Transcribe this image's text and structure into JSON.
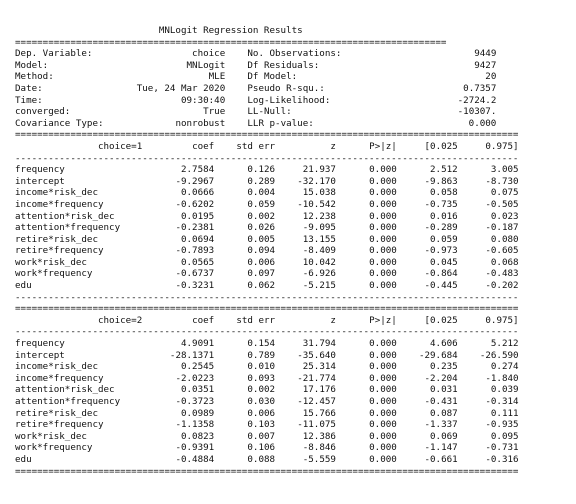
{
  "title": "MNLogit Regression Results",
  "summary": [
    {
      "label": "Dep. Variable:",
      "value": "choice",
      "label2": "No. Observations:",
      "value2": "9449"
    },
    {
      "label": "Model:",
      "value": "MNLogit",
      "label2": "Df Residuals:",
      "value2": "9427"
    },
    {
      "label": "Method:",
      "value": "MLE",
      "label2": "Df Model:",
      "value2": "20"
    },
    {
      "label": "Date:",
      "value": "Tue, 24 Mar 2020",
      "label2": "Pseudo R-squ.:",
      "value2": "0.7357"
    },
    {
      "label": "Time:",
      "value": "09:30:40",
      "label2": "Log-Likelihood:",
      "value2": "-2724.2"
    },
    {
      "label": "converged:",
      "value": "True",
      "label2": "LL-Null:",
      "value2": "-10307."
    },
    {
      "label": "Covariance Type:",
      "value": "nonrobust",
      "label2": "LLR p-value:",
      "value2": "0.000"
    }
  ],
  "column_headers": [
    "coef",
    "std err",
    "z",
    "P>|z|",
    "[0.025",
    "0.975]"
  ],
  "blocks": [
    {
      "header": "choice=1",
      "rows": [
        {
          "name": "frequency",
          "cells": [
            "2.7584",
            "0.126",
            "21.937",
            "0.000",
            "2.512",
            "3.005"
          ]
        },
        {
          "name": "intercept",
          "cells": [
            "-9.2967",
            "0.289",
            "-32.170",
            "0.000",
            "-9.863",
            "-8.730"
          ]
        },
        {
          "name": "income*risk_dec",
          "cells": [
            "0.0666",
            "0.004",
            "15.038",
            "0.000",
            "0.058",
            "0.075"
          ]
        },
        {
          "name": "income*frequency",
          "cells": [
            "-0.6202",
            "0.059",
            "-10.542",
            "0.000",
            "-0.735",
            "-0.505"
          ]
        },
        {
          "name": "attention*risk_dec",
          "cells": [
            "0.0195",
            "0.002",
            "12.238",
            "0.000",
            "0.016",
            "0.023"
          ]
        },
        {
          "name": "attention*frequency",
          "cells": [
            "-0.2381",
            "0.026",
            "-9.095",
            "0.000",
            "-0.289",
            "-0.187"
          ]
        },
        {
          "name": "retire*risk_dec",
          "cells": [
            "0.0694",
            "0.005",
            "13.155",
            "0.000",
            "0.059",
            "0.080"
          ]
        },
        {
          "name": "retire*frequency",
          "cells": [
            "-0.7893",
            "0.094",
            "-8.409",
            "0.000",
            "-0.973",
            "-0.605"
          ]
        },
        {
          "name": "work*risk_dec",
          "cells": [
            "0.0565",
            "0.006",
            "10.042",
            "0.000",
            "0.045",
            "0.068"
          ]
        },
        {
          "name": "work*frequency",
          "cells": [
            "-0.6737",
            "0.097",
            "-6.926",
            "0.000",
            "-0.864",
            "-0.483"
          ]
        },
        {
          "name": "edu",
          "cells": [
            "-0.3231",
            "0.062",
            "-5.215",
            "0.000",
            "-0.445",
            "-0.202"
          ]
        }
      ]
    },
    {
      "header": "choice=2",
      "rows": [
        {
          "name": "frequency",
          "cells": [
            "4.9091",
            "0.154",
            "31.794",
            "0.000",
            "4.606",
            "5.212"
          ]
        },
        {
          "name": "intercept",
          "cells": [
            "-28.1371",
            "0.789",
            "-35.640",
            "0.000",
            "-29.684",
            "-26.590"
          ]
        },
        {
          "name": "income*risk_dec",
          "cells": [
            "0.2545",
            "0.010",
            "25.314",
            "0.000",
            "0.235",
            "0.274"
          ]
        },
        {
          "name": "income*frequency",
          "cells": [
            "-2.0223",
            "0.093",
            "-21.774",
            "0.000",
            "-2.204",
            "-1.840"
          ]
        },
        {
          "name": "attention*risk_dec",
          "cells": [
            "0.0351",
            "0.002",
            "17.176",
            "0.000",
            "0.031",
            "0.039"
          ]
        },
        {
          "name": "attention*frequency",
          "cells": [
            "-0.3723",
            "0.030",
            "-12.457",
            "0.000",
            "-0.431",
            "-0.314"
          ]
        },
        {
          "name": "retire*risk_dec",
          "cells": [
            "0.0989",
            "0.006",
            "15.766",
            "0.000",
            "0.087",
            "0.111"
          ]
        },
        {
          "name": "retire*frequency",
          "cells": [
            "-1.1358",
            "0.103",
            "-11.075",
            "0.000",
            "-1.337",
            "-0.935"
          ]
        },
        {
          "name": "work*risk_dec",
          "cells": [
            "0.0823",
            "0.007",
            "12.386",
            "0.000",
            "0.069",
            "0.095"
          ]
        },
        {
          "name": "work*frequency",
          "cells": [
            "-0.9391",
            "0.106",
            "-8.846",
            "0.000",
            "-1.147",
            "-0.731"
          ]
        },
        {
          "name": "edu",
          "cells": [
            "-0.4884",
            "0.088",
            "-5.559",
            "0.000",
            "-0.661",
            "-0.316"
          ]
        }
      ]
    }
  ]
}
